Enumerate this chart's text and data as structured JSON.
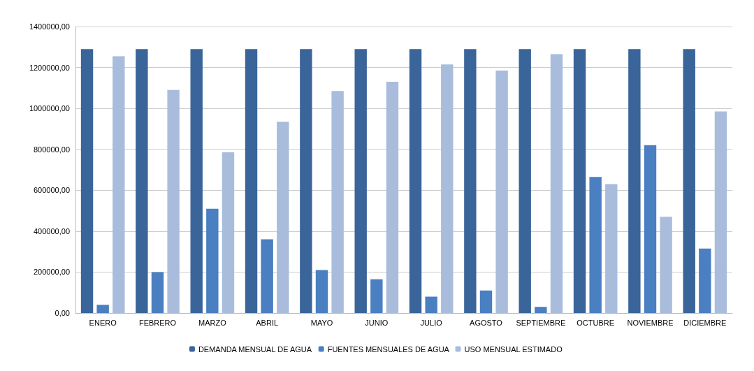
{
  "chart_data": {
    "type": "bar",
    "categories": [
      "ENERO",
      "FEBRERO",
      "MARZO",
      "ABRIL",
      "MAYO",
      "JUNIO",
      "JULIO",
      "AGOSTO",
      "SEPTIEMBRE",
      "OCTUBRE",
      "NOVIEMBRE",
      "DICIEMBRE"
    ],
    "series": [
      {
        "name": "DEMANDA MENSUAL DE AGUA",
        "color": "#3a659a",
        "values": [
          1290000,
          1290000,
          1290000,
          1290000,
          1290000,
          1290000,
          1290000,
          1290000,
          1290000,
          1290000,
          1290000,
          1290000
        ]
      },
      {
        "name": "FUENTES MENSUALES DE AGUA",
        "color": "#4a7fc1",
        "values": [
          40000,
          200000,
          510000,
          360000,
          210000,
          165000,
          80000,
          110000,
          30000,
          665000,
          820000,
          315000
        ]
      },
      {
        "name": "USO MENSUAL ESTIMADO",
        "color": "#a9bcdc",
        "values": [
          1255000,
          1090000,
          785000,
          935000,
          1085000,
          1130000,
          1215000,
          1185000,
          1265000,
          630000,
          470000,
          985000
        ]
      }
    ],
    "ylim": [
      0,
      1400000
    ],
    "yticks": [
      {
        "value": 0,
        "label": "0,00"
      },
      {
        "value": 200000,
        "label": "200000,00"
      },
      {
        "value": 400000,
        "label": "400000,00"
      },
      {
        "value": 600000,
        "label": "600000,00"
      },
      {
        "value": 800000,
        "label": "800000,00"
      },
      {
        "value": 1000000,
        "label": "1000000,00"
      },
      {
        "value": 1200000,
        "label": "1200000,00"
      },
      {
        "value": 1400000,
        "label": "1400000,00"
      }
    ],
    "grid": "y",
    "legend": "bottom"
  }
}
